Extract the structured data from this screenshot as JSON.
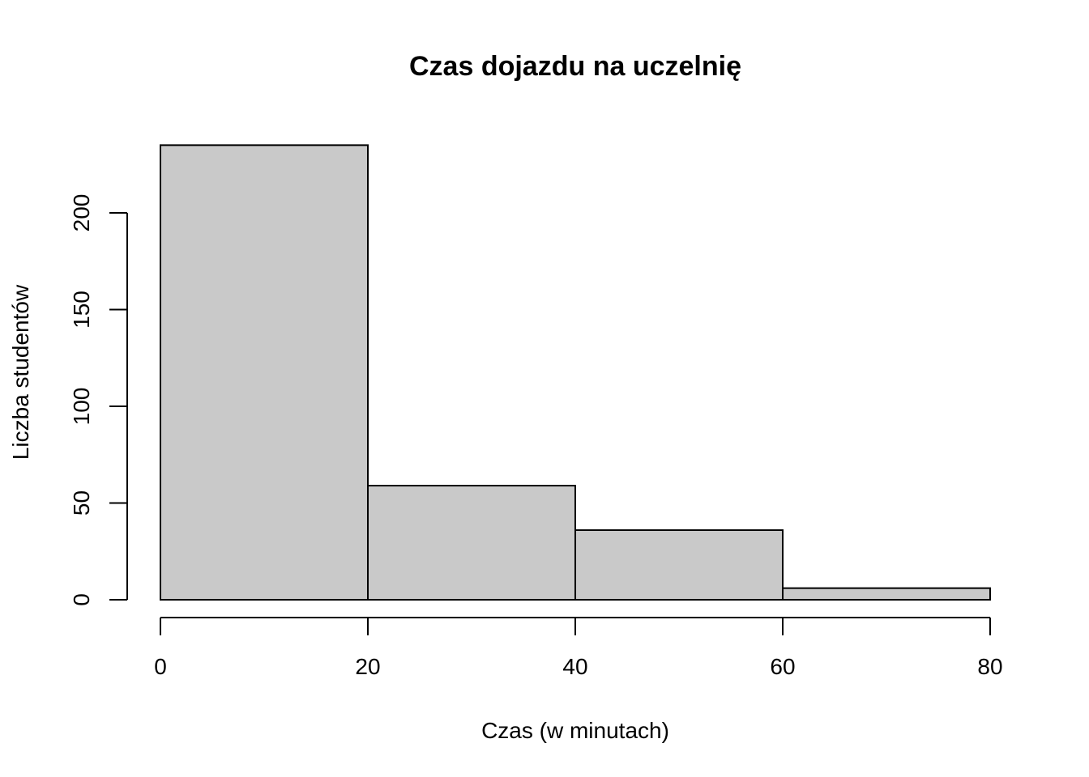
{
  "chart_data": {
    "type": "bar",
    "histogram": true,
    "title": "Czas dojazdu na uczelnię",
    "xlabel": "Czas (w minutach)",
    "ylabel": "Liczba studentów",
    "bin_edges": [
      0,
      20,
      40,
      60,
      80
    ],
    "values": [
      235,
      59,
      36,
      6
    ],
    "xlim": [
      0,
      80
    ],
    "ylim": [
      0,
      235
    ],
    "x_ticks": [
      "0",
      "20",
      "40",
      "60",
      "80"
    ],
    "y_ticks": [
      "0",
      "50",
      "100",
      "150",
      "200"
    ],
    "bar_color": "#C9C9C9",
    "edge_color": "#000000",
    "grid": false
  }
}
